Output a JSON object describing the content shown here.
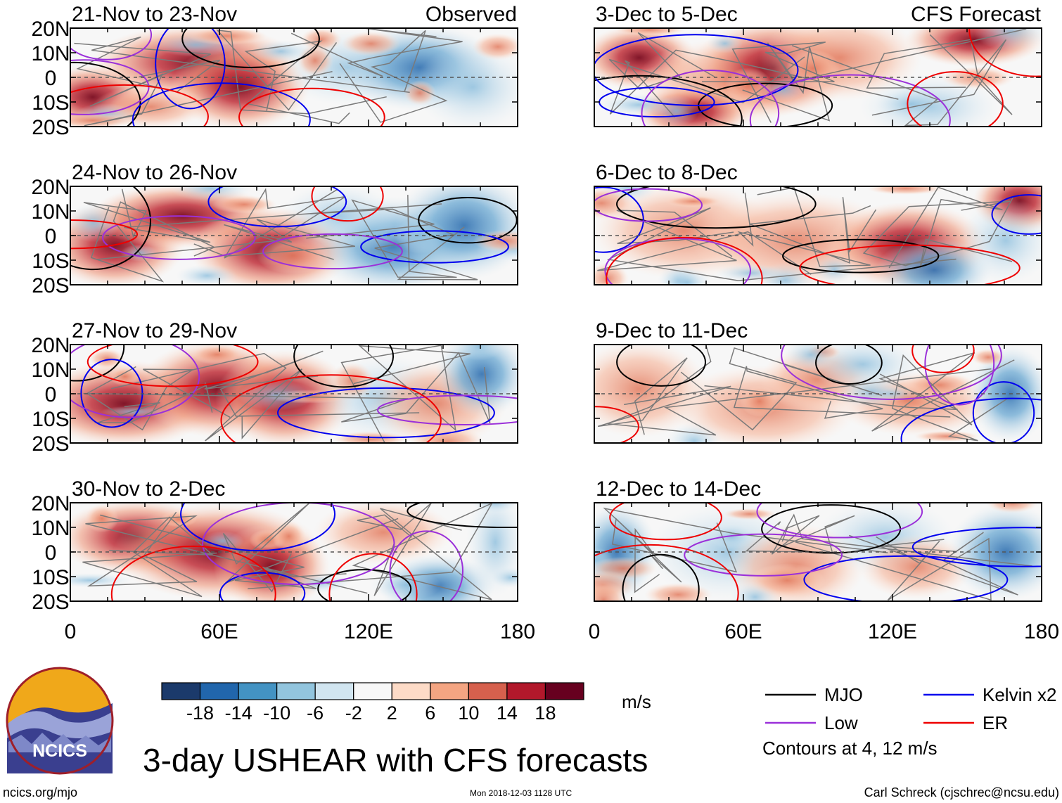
{
  "chart_data": {
    "type": "heatmap",
    "title": "3-day USHEAR with CFS forecasts",
    "units": "m/s",
    "columns": [
      {
        "label": "Observed",
        "panels": [
          "21-Nov to 23-Nov",
          "24-Nov to 26-Nov",
          "27-Nov to 29-Nov",
          "30-Nov to 2-Dec"
        ]
      },
      {
        "label": "CFS Forecast",
        "panels": [
          "3-Dec to 5-Dec",
          "6-Dec to 8-Dec",
          "9-Dec to 11-Dec",
          "12-Dec to 14-Dec"
        ]
      }
    ],
    "x_ticks": [
      "0",
      "60E",
      "120E",
      "180"
    ],
    "x_range": [
      0,
      180
    ],
    "y_ticks": [
      "20N",
      "10N",
      "0",
      "10S",
      "20S"
    ],
    "y_range": [
      -20,
      20
    ],
    "colorbar": {
      "ticks": [
        "-18",
        "-14",
        "-10",
        "-6",
        "-2",
        "2",
        "6",
        "10",
        "14",
        "18"
      ],
      "colors": [
        "#1b3a6b",
        "#2166ac",
        "#4393c3",
        "#92c5de",
        "#d1e5f0",
        "#f7f7f7",
        "#fddbc7",
        "#f4a582",
        "#d6604d",
        "#b2182b",
        "#67001f"
      ]
    },
    "legend": [
      {
        "label": "MJO",
        "color": "#000000"
      },
      {
        "label": "Kelvin x2",
        "color": "#0000ee"
      },
      {
        "label": "Low",
        "color": "#9b30d9"
      },
      {
        "label": "ER",
        "color": "#ee0000"
      }
    ],
    "contour_note": "Contours at 4, 12 m/s"
  },
  "footer": {
    "logo_text": "NCICS",
    "site": "ncics.org/mjo",
    "timestamp": "Mon 2018-12-03 1128 UTC",
    "author": "Carl Schreck (cjschrec@ncsu.edu)"
  }
}
